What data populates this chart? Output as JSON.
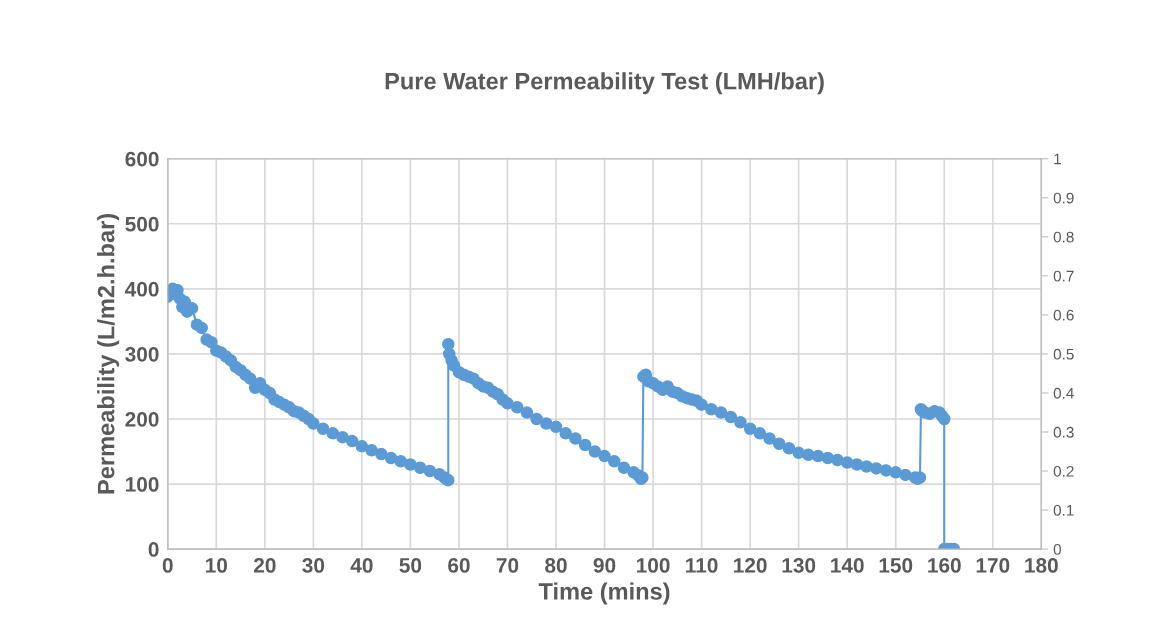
{
  "chart_data": {
    "type": "line",
    "title": "Pure Water Permeability Test (LMH/bar)",
    "xlabel": "Time (mins)",
    "ylabel": "Permeability (L/m2.h.bar)",
    "x": [
      0,
      0.5,
      1,
      1.5,
      2,
      2.5,
      3,
      3.5,
      4,
      5,
      6,
      7,
      8,
      9,
      10,
      11,
      12,
      13,
      14,
      15,
      16,
      17,
      18,
      19,
      20,
      21,
      22,
      23,
      24,
      25,
      26,
      27,
      28,
      29,
      30,
      32,
      34,
      36,
      38,
      40,
      42,
      44,
      46,
      48,
      50,
      52,
      54,
      56,
      57,
      57.5,
      57.8,
      57.8,
      58,
      58.5,
      59,
      60,
      61,
      62,
      63,
      64,
      65,
      66,
      67,
      68,
      69,
      70,
      72,
      74,
      76,
      78,
      80,
      82,
      84,
      86,
      88,
      90,
      92,
      94,
      96,
      97,
      97.5,
      97.8,
      98,
      98.5,
      99,
      100,
      101,
      102,
      103,
      104,
      105,
      106,
      107,
      108,
      109,
      110,
      112,
      114,
      116,
      118,
      120,
      122,
      124,
      126,
      128,
      130,
      132,
      134,
      136,
      138,
      140,
      142,
      144,
      146,
      148,
      150,
      152,
      154,
      154.5,
      155,
      155.2,
      155.5,
      156,
      157,
      158,
      159,
      159.5,
      160,
      160,
      160.5,
      161,
      161.5,
      162
    ],
    "series": [
      {
        "color": "#5b9bd5",
        "values": [
          388,
          395,
          400,
          392,
          398,
          385,
          372,
          380,
          365,
          370,
          345,
          340,
          322,
          318,
          305,
          302,
          296,
          290,
          280,
          275,
          268,
          262,
          248,
          255,
          245,
          240,
          230,
          226,
          222,
          218,
          212,
          210,
          205,
          200,
          193,
          185,
          178,
          172,
          166,
          158,
          152,
          146,
          140,
          135,
          130,
          125,
          120,
          115,
          110,
          107,
          106,
          315,
          300,
          290,
          282,
          272,
          268,
          265,
          262,
          255,
          250,
          248,
          242,
          238,
          230,
          224,
          218,
          210,
          200,
          193,
          188,
          178,
          170,
          160,
          150,
          143,
          135,
          125,
          118,
          113,
          108,
          110,
          265,
          268,
          258,
          255,
          250,
          245,
          250,
          242,
          240,
          235,
          232,
          230,
          228,
          222,
          215,
          210,
          203,
          195,
          185,
          178,
          170,
          162,
          155,
          148,
          145,
          143,
          140,
          137,
          133,
          130,
          127,
          124,
          121,
          118,
          114,
          110,
          108,
          110,
          215,
          212,
          210,
          208,
          212,
          210,
          205,
          200,
          0,
          0,
          0,
          0,
          0
        ]
      }
    ],
    "xlim": [
      0,
      180
    ],
    "xticks": [
      0,
      10,
      20,
      30,
      40,
      50,
      60,
      70,
      80,
      90,
      100,
      110,
      120,
      130,
      140,
      150,
      160,
      170,
      180
    ],
    "ylim": [
      0,
      600
    ],
    "yticks": [
      0,
      100,
      200,
      300,
      400,
      500,
      600
    ],
    "y2lim": [
      0,
      1
    ],
    "y2ticks": [
      0,
      0.1,
      0.2,
      0.3,
      0.4,
      0.5,
      0.6,
      0.7,
      0.8,
      0.9,
      1
    ],
    "grid": true,
    "marker": "circle",
    "line_style": "solid",
    "legend": false
  }
}
